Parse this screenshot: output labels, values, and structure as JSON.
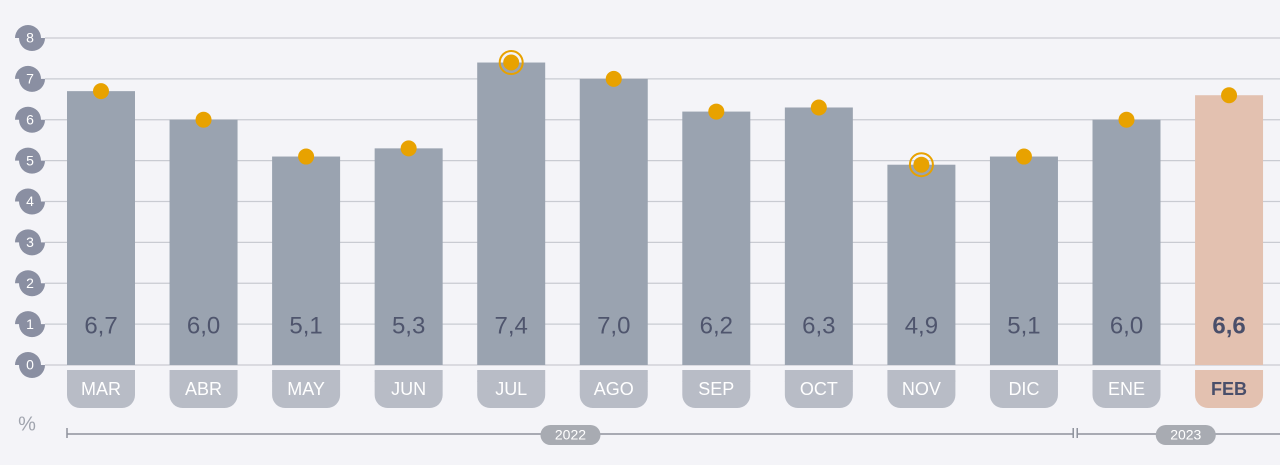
{
  "chart_data": {
    "type": "bar",
    "unit": "%",
    "groups": [
      {
        "label": "2022",
        "categories": [
          "MAR",
          "ABR",
          "MAY",
          "JUN",
          "JUL",
          "AGO",
          "SEP",
          "OCT",
          "NOV",
          "DIC"
        ]
      },
      {
        "label": "2023",
        "categories": [
          "ENE",
          "FEB"
        ]
      }
    ],
    "values": [
      6.7,
      6.0,
      5.1,
      5.3,
      7.4,
      7.0,
      6.2,
      6.3,
      4.9,
      5.1,
      6.0,
      6.6
    ],
    "value_labels": [
      "6,7",
      "6,0",
      "5,1",
      "5,3",
      "7,4",
      "7,0",
      "6,2",
      "6,3",
      "4,9",
      "5,1",
      "6,0",
      "6,6"
    ],
    "colors": [
      "#9aa3b0",
      "#9aa3b0",
      "#9aa3b0",
      "#9aa3b0",
      "#9aa3b0",
      "#9aa3b0",
      "#9aa3b0",
      "#9aa3b0",
      "#9aa3b0",
      "#9aa3b0",
      "#9aa3b0",
      "#e3c1b0"
    ],
    "marker_color": "#e8a200",
    "ylim": [
      0,
      8
    ],
    "yticks": [
      0,
      1,
      2,
      3,
      4,
      5,
      6,
      7,
      8
    ],
    "grid": true
  }
}
